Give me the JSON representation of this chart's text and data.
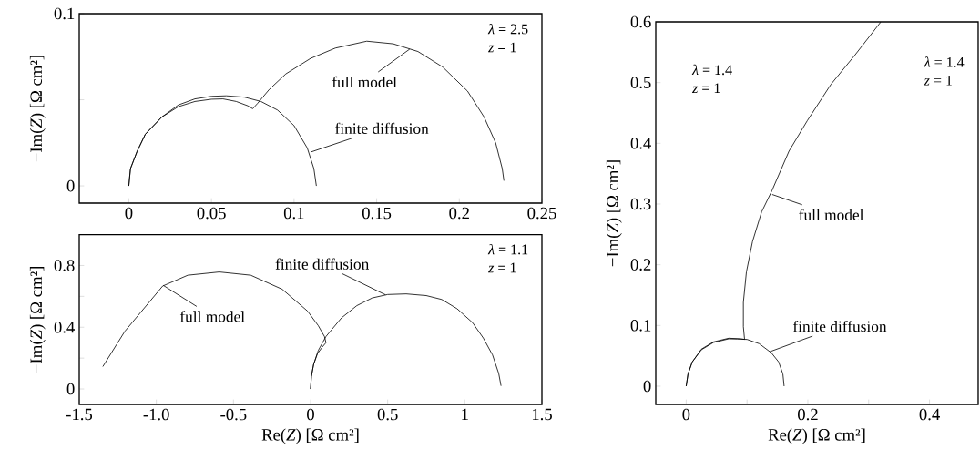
{
  "chart_data": [
    {
      "type": "line",
      "ylabel": "−Im(*Z*) [Ω cm²]",
      "xlim": [
        -0.03,
        0.25
      ],
      "ylim": [
        -0.01,
        0.1
      ],
      "xticks": [
        0,
        0.05,
        0.1,
        0.15,
        0.2,
        0.25
      ],
      "yticks": [
        0,
        {
          "value": 0.05,
          "label": null
        },
        0.1
      ],
      "annotations": [
        "*λ* = 2.5",
        "*z* = 1",
        {
          "text": "full model",
          "x": 0.17,
          "y": 0.0794
        },
        {
          "text": "finite diffusion",
          "x": 0.11,
          "y": 0.0196
        }
      ],
      "series": [
        {
          "color": "#000000",
          "x": [
            0,
            0.001,
            0.005,
            0.01,
            0.02,
            0.03,
            0.04,
            0.05,
            0.057,
            0.065,
            0.072,
            0.075,
            0.078,
            0.085,
            0.095,
            0.11,
            0.125,
            0.144,
            0.16,
            0.175,
            0.19,
            0.205,
            0.215,
            0.222,
            0.226,
            0.227
          ],
          "values": [
            0,
            0.01,
            0.02,
            0.03,
            0.04,
            0.046,
            0.049,
            0.0503,
            0.0505,
            0.049,
            0.0465,
            0.0448,
            0.048,
            0.056,
            0.065,
            0.074,
            0.08,
            0.084,
            0.0825,
            0.078,
            0.069,
            0.055,
            0.04,
            0.025,
            0.01,
            0.003
          ]
        },
        {
          "color": "#000000",
          "x": [
            0,
            0.001,
            0.005,
            0.01,
            0.02,
            0.03,
            0.04,
            0.05,
            0.059,
            0.07,
            0.08,
            0.09,
            0.1,
            0.108,
            0.112,
            0.1135
          ],
          "values": [
            0,
            0.01,
            0.02,
            0.03,
            0.04,
            0.047,
            0.0505,
            0.052,
            0.0523,
            0.0515,
            0.049,
            0.044,
            0.035,
            0.022,
            0.01,
            0
          ]
        }
      ]
    },
    {
      "type": "line",
      "xlabel": "Re(*Z*) [Ω cm²]",
      "ylabel": "−Im(*Z*) [Ω cm²]",
      "xlim": [
        -1.5,
        1.5
      ],
      "ylim": [
        -0.1,
        1.0
      ],
      "xticks": [
        -1.5,
        {
          "value": -1,
          "label": "-1.0"
        },
        -0.5,
        0,
        0.5,
        1,
        1.5
      ],
      "yticks": [
        0,
        {
          "value": 0.2,
          "label": null
        },
        0.4,
        {
          "value": 0.6,
          "label": null
        },
        0.8
      ],
      "annotations": [
        "*λ* = 1.1",
        "*z* = 1",
        {
          "text": "full model",
          "x": -0.955,
          "y": 0.671
        },
        {
          "text": "finite diffusion",
          "x": 0.486,
          "y": 0.61
        }
      ],
      "series": [
        {
          "color": "#000000",
          "x": [
            0,
            0.005,
            0.02,
            0.045,
            0.075,
            0.1,
            0.09,
            0.05,
            -0.02,
            -0.184,
            -0.388,
            -0.592,
            -0.796,
            -0.959,
            -1.204,
            -1.347
          ],
          "values": [
            0,
            0.08,
            0.16,
            0.23,
            0.27,
            0.3,
            0.34,
            0.41,
            0.505,
            0.646,
            0.737,
            0.758,
            0.737,
            0.667,
            0.374,
            0.145
          ]
        },
        {
          "color": "#000000",
          "x": [
            0,
            0.005,
            0.02,
            0.05,
            0.1,
            0.2,
            0.3,
            0.4,
            0.5,
            0.62,
            0.75,
            0.85,
            0.95,
            1.05,
            1.12,
            1.18,
            1.22,
            1.235
          ],
          "values": [
            0,
            0.08,
            0.16,
            0.25,
            0.34,
            0.46,
            0.54,
            0.59,
            0.612,
            0.616,
            0.605,
            0.58,
            0.52,
            0.43,
            0.33,
            0.22,
            0.1,
            0.02
          ]
        }
      ]
    },
    {
      "type": "line",
      "xlabel": "Re(*Z*) [Ω cm²]",
      "ylabel": "−Im(*Z*) [Ω cm²]",
      "xlim": [
        -0.05,
        0.48
      ],
      "ylim": [
        -0.03,
        0.6
      ],
      "xticks": [
        0,
        {
          "value": 0.1,
          "label": null
        },
        0.2,
        {
          "value": 0.3,
          "label": null
        },
        0.4
      ],
      "yticks": [
        0,
        0.1,
        0.2,
        0.3,
        0.4,
        0.5,
        0.6
      ],
      "annotations": [
        "*λ* = 1.4",
        "*z* = 1",
        "*λ* = 1.4",
        "*z* = 1",
        {
          "text": "full model",
          "x": 0.1414,
          "y": 0.3157
        },
        {
          "text": "finite diffusion",
          "x": 0.1375,
          "y": 0.0568
        }
      ],
      "series": [
        {
          "color": "#000000",
          "x": [
            0,
            0.003,
            0.01,
            0.025,
            0.045,
            0.07,
            0.09,
            0.096,
            0.094,
            0.094,
            0.099,
            0.109,
            0.124,
            0.141,
            0.169,
            0.199,
            0.238,
            0.278,
            0.32
          ],
          "values": [
            0,
            0.02,
            0.04,
            0.061,
            0.073,
            0.079,
            0.078,
            0.077,
            0.098,
            0.138,
            0.188,
            0.238,
            0.287,
            0.322,
            0.387,
            0.437,
            0.497,
            0.546,
            0.6
          ]
        },
        {
          "color": "#000000",
          "x": [
            0,
            0.003,
            0.01,
            0.025,
            0.045,
            0.07,
            0.084,
            0.1,
            0.12,
            0.14,
            0.152,
            0.159,
            0.161
          ],
          "values": [
            0,
            0.02,
            0.04,
            0.06,
            0.072,
            0.078,
            0.0777,
            0.077,
            0.07,
            0.055,
            0.04,
            0.02,
            0
          ]
        }
      ]
    }
  ]
}
